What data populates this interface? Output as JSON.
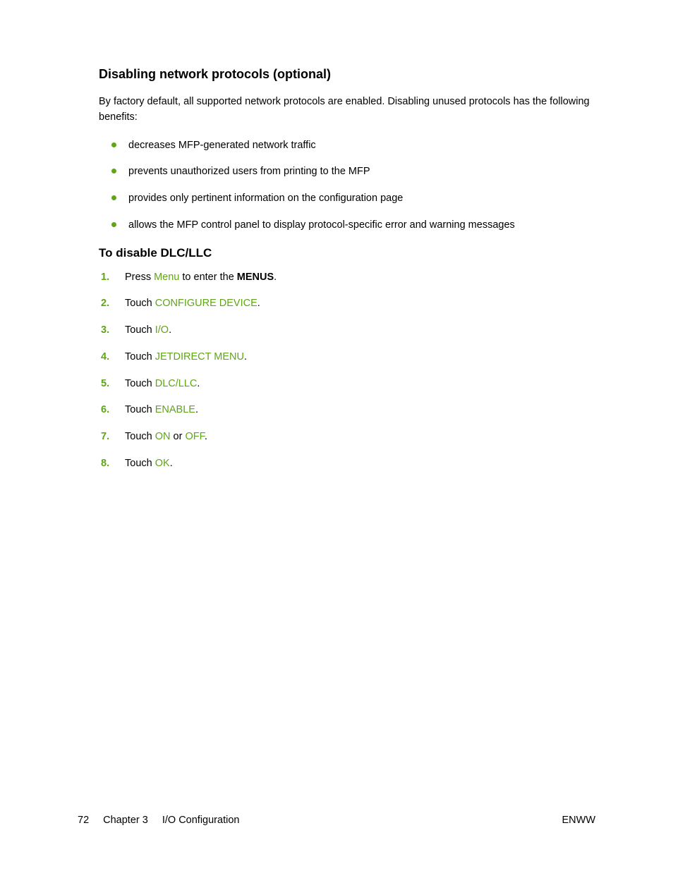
{
  "colors": {
    "accent": "#5fa516",
    "text": "#000000",
    "background": "#ffffff"
  },
  "typography": {
    "body_fontsize": 14.5,
    "h2_fontsize": 18,
    "h3_fontsize": 17,
    "font_family": "Arial"
  },
  "section1": {
    "heading": "Disabling network protocols (optional)",
    "intro": "By factory default, all supported network protocols are enabled. Disabling unused protocols has the following benefits:",
    "bullets": [
      "decreases MFP-generated network traffic",
      "prevents unauthorized users from printing to the MFP",
      "provides only pertinent information on the configuration page",
      "allows the MFP control panel to display protocol-specific error and warning messages"
    ]
  },
  "section2": {
    "heading": "To disable DLC/LLC",
    "steps": [
      {
        "num": "1.",
        "prefix": "Press ",
        "term": "Menu",
        "suffix": " to enter the ",
        "bold": "MENUS",
        "tail": "."
      },
      {
        "num": "2.",
        "prefix": "Touch ",
        "term": "CONFIGURE DEVICE",
        "tail": "."
      },
      {
        "num": "3.",
        "prefix": "Touch ",
        "term": "I/O",
        "tail": "."
      },
      {
        "num": "4.",
        "prefix": "Touch ",
        "term": "JETDIRECT MENU",
        "tail": "."
      },
      {
        "num": "5.",
        "prefix": "Touch ",
        "term": "DLC/LLC",
        "tail": "."
      },
      {
        "num": "6.",
        "prefix": "Touch ",
        "term": "ENABLE",
        "tail": "."
      },
      {
        "num": "7.",
        "prefix": "Touch ",
        "term": "ON",
        "mid": " or ",
        "term2": "OFF",
        "tail": "."
      },
      {
        "num": "8.",
        "prefix": "Touch ",
        "term": "OK",
        "tail": "."
      }
    ]
  },
  "footer": {
    "page": "72",
    "chapter": "Chapter 3",
    "title": "I/O Configuration",
    "right": "ENWW"
  }
}
